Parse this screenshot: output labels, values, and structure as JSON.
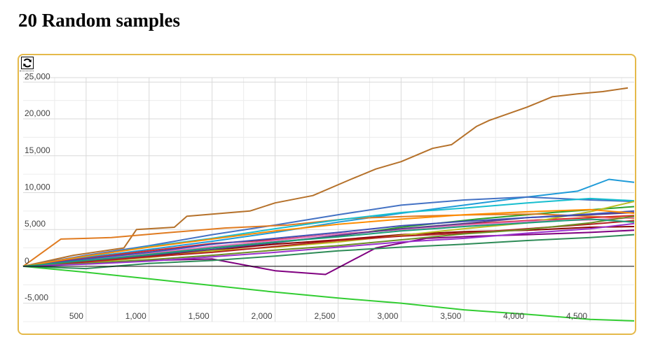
{
  "page": {
    "title": "20 Random samples"
  },
  "toolbar": {
    "refresh_icon": "refresh-icon"
  },
  "colors": {
    "panel_border": "#e5b94a",
    "grid": "#d9d9d9",
    "zero_line": "#000000"
  },
  "chart_data": {
    "type": "line",
    "title": "",
    "xlabel": "",
    "ylabel": "",
    "xlim": [
      0,
      4850
    ],
    "ylim": [
      -7500,
      25600
    ],
    "grid": true,
    "legend": "none",
    "x_ticks": [
      500,
      1000,
      1500,
      2000,
      2500,
      3000,
      3500,
      4000,
      4500
    ],
    "x_tick_labels": [
      "500",
      "1,000",
      "1,500",
      "2,000",
      "2,500",
      "3,000",
      "3,500",
      "4,000",
      "4,500"
    ],
    "y_ticks": [
      -5000,
      0,
      5000,
      10000,
      15000,
      20000,
      25000
    ],
    "y_tick_labels": [
      "-5,000",
      "0",
      "5,000",
      "10,000",
      "15,000",
      "20,000",
      "25,000"
    ],
    "series": [
      {
        "color": "#b5712a",
        "points": [
          [
            0,
            0
          ],
          [
            400,
            1500
          ],
          [
            800,
            2500
          ],
          [
            900,
            5000
          ],
          [
            1200,
            5300
          ],
          [
            1300,
            6800
          ],
          [
            1800,
            7500
          ],
          [
            2000,
            8600
          ],
          [
            2300,
            9600
          ],
          [
            2600,
            11800
          ],
          [
            2800,
            13200
          ],
          [
            3000,
            14200
          ],
          [
            3250,
            16000
          ],
          [
            3400,
            16500
          ],
          [
            3600,
            19000
          ],
          [
            3700,
            19800
          ],
          [
            4000,
            21600
          ],
          [
            4200,
            23000
          ],
          [
            4400,
            23400
          ],
          [
            4600,
            23700
          ],
          [
            4800,
            24200
          ]
        ]
      },
      {
        "color": "#1f9bd8",
        "points": [
          [
            0,
            0
          ],
          [
            500,
            1200
          ],
          [
            1000,
            2300
          ],
          [
            1500,
            3400
          ],
          [
            2000,
            4600
          ],
          [
            2500,
            6000
          ],
          [
            3000,
            7200
          ],
          [
            3500,
            8300
          ],
          [
            4000,
            9400
          ],
          [
            4400,
            10200
          ],
          [
            4650,
            11800
          ],
          [
            4850,
            11400
          ]
        ]
      },
      {
        "color": "#4472c4",
        "points": [
          [
            0,
            0
          ],
          [
            500,
            1500
          ],
          [
            1000,
            2800
          ],
          [
            1500,
            4300
          ],
          [
            2000,
            5600
          ],
          [
            2500,
            7000
          ],
          [
            3000,
            8300
          ],
          [
            3500,
            9000
          ],
          [
            4000,
            9400
          ],
          [
            4500,
            9000
          ],
          [
            4850,
            8800
          ]
        ]
      },
      {
        "color": "#2ca02c",
        "points": [
          [
            0,
            0
          ],
          [
            600,
            900
          ],
          [
            1200,
            2100
          ],
          [
            1800,
            3000
          ],
          [
            2400,
            3900
          ],
          [
            3000,
            5300
          ],
          [
            3600,
            6400
          ],
          [
            4200,
            7300
          ],
          [
            4850,
            8100
          ]
        ]
      },
      {
        "color": "#e07b20",
        "points": [
          [
            0,
            0
          ],
          [
            300,
            3700
          ],
          [
            700,
            3900
          ],
          [
            1100,
            4500
          ],
          [
            1600,
            5200
          ],
          [
            2100,
            5600
          ],
          [
            2600,
            6500
          ],
          [
            3100,
            6800
          ],
          [
            3600,
            7000
          ],
          [
            4100,
            7100
          ],
          [
            4850,
            6500
          ]
        ]
      },
      {
        "color": "#32cd32",
        "points": [
          [
            0,
            0
          ],
          [
            500,
            -800
          ],
          [
            1000,
            -1700
          ],
          [
            1500,
            -2600
          ],
          [
            2000,
            -3500
          ],
          [
            2500,
            -4300
          ],
          [
            3000,
            -5000
          ],
          [
            3500,
            -5900
          ],
          [
            4000,
            -6500
          ],
          [
            4500,
            -7200
          ],
          [
            4850,
            -7400
          ]
        ]
      },
      {
        "color": "#8b0000",
        "points": [
          [
            0,
            0
          ],
          [
            500,
            700
          ],
          [
            1000,
            1400
          ],
          [
            1500,
            2200
          ],
          [
            2000,
            3000
          ],
          [
            2500,
            3600
          ],
          [
            3000,
            4300
          ],
          [
            3500,
            4700
          ],
          [
            4000,
            4900
          ],
          [
            4500,
            5300
          ],
          [
            4850,
            5400
          ]
        ]
      },
      {
        "color": "#800080",
        "points": [
          [
            0,
            0
          ],
          [
            500,
            400
          ],
          [
            1000,
            800
          ],
          [
            1500,
            1000
          ],
          [
            2000,
            -600
          ],
          [
            2400,
            -1100
          ],
          [
            2800,
            2500
          ],
          [
            3200,
            3800
          ],
          [
            3600,
            4100
          ],
          [
            4000,
            4300
          ],
          [
            4500,
            4600
          ],
          [
            4850,
            4900
          ]
        ]
      },
      {
        "color": "#17becf",
        "points": [
          [
            0,
            0
          ],
          [
            500,
            1300
          ],
          [
            1000,
            2700
          ],
          [
            1500,
            3800
          ],
          [
            2000,
            5100
          ],
          [
            2500,
            6300
          ],
          [
            3000,
            7300
          ],
          [
            3500,
            7900
          ],
          [
            4000,
            8600
          ],
          [
            4500,
            9200
          ],
          [
            4850,
            8900
          ]
        ]
      },
      {
        "color": "#d62728",
        "points": [
          [
            0,
            0
          ],
          [
            500,
            1100
          ],
          [
            1000,
            2100
          ],
          [
            1500,
            3100
          ],
          [
            2000,
            3600
          ],
          [
            2500,
            4400
          ],
          [
            3000,
            5000
          ],
          [
            3500,
            5700
          ],
          [
            4000,
            6200
          ],
          [
            4500,
            6600
          ],
          [
            4850,
            6900
          ]
        ]
      },
      {
        "color": "#bcbd22",
        "points": [
          [
            0,
            0
          ],
          [
            500,
            500
          ],
          [
            1000,
            1200
          ],
          [
            1500,
            2100
          ],
          [
            2000,
            2600
          ],
          [
            2500,
            3300
          ],
          [
            3000,
            4200
          ],
          [
            3500,
            5100
          ],
          [
            4000,
            5900
          ],
          [
            4500,
            7400
          ],
          [
            4850,
            8800
          ]
        ]
      },
      {
        "color": "#e377c2",
        "points": [
          [
            0,
            0
          ],
          [
            500,
            900
          ],
          [
            1000,
            1800
          ],
          [
            1500,
            2700
          ],
          [
            2000,
            3500
          ],
          [
            2500,
            4400
          ],
          [
            3000,
            5000
          ],
          [
            3500,
            5600
          ],
          [
            4000,
            6100
          ],
          [
            4500,
            6300
          ],
          [
            4850,
            6600
          ]
        ]
      },
      {
        "color": "#5a3d8a",
        "points": [
          [
            0,
            0
          ],
          [
            500,
            700
          ],
          [
            1000,
            1500
          ],
          [
            1500,
            2300
          ],
          [
            2000,
            3200
          ],
          [
            2500,
            4200
          ],
          [
            3000,
            5100
          ],
          [
            3500,
            5800
          ],
          [
            4000,
            6600
          ],
          [
            4500,
            7000
          ],
          [
            4850,
            7300
          ]
        ]
      },
      {
        "color": "#2e8b57",
        "points": [
          [
            0,
            0
          ],
          [
            500,
            -300
          ],
          [
            1000,
            400
          ],
          [
            1500,
            800
          ],
          [
            2000,
            1400
          ],
          [
            2500,
            2100
          ],
          [
            3000,
            2600
          ],
          [
            3500,
            3000
          ],
          [
            4000,
            3500
          ],
          [
            4500,
            3900
          ],
          [
            4850,
            4300
          ]
        ]
      },
      {
        "color": "#b22222",
        "points": [
          [
            0,
            0
          ],
          [
            500,
            600
          ],
          [
            1000,
            1300
          ],
          [
            1500,
            1900
          ],
          [
            2000,
            2700
          ],
          [
            2500,
            3500
          ],
          [
            3000,
            4100
          ],
          [
            3500,
            4500
          ],
          [
            4000,
            5100
          ],
          [
            4500,
            5700
          ],
          [
            4850,
            6200
          ]
        ]
      },
      {
        "color": "#6b8e23",
        "points": [
          [
            0,
            0
          ],
          [
            500,
            400
          ],
          [
            1000,
            900
          ],
          [
            1500,
            1500
          ],
          [
            2000,
            2200
          ],
          [
            2500,
            2800
          ],
          [
            3000,
            3600
          ],
          [
            3500,
            4400
          ],
          [
            4000,
            5000
          ],
          [
            4500,
            5900
          ],
          [
            4850,
            6800
          ]
        ]
      },
      {
        "color": "#3f51b5",
        "points": [
          [
            0,
            0
          ],
          [
            500,
            1000
          ],
          [
            1000,
            1900
          ],
          [
            1500,
            3000
          ],
          [
            2000,
            3800
          ],
          [
            2500,
            4600
          ],
          [
            3000,
            5500
          ],
          [
            3500,
            6100
          ],
          [
            4000,
            6600
          ],
          [
            4500,
            7100
          ],
          [
            4850,
            7500
          ]
        ]
      },
      {
        "color": "#9932cc",
        "points": [
          [
            0,
            0
          ],
          [
            500,
            300
          ],
          [
            1000,
            700
          ],
          [
            1500,
            1300
          ],
          [
            2000,
            1900
          ],
          [
            2500,
            2600
          ],
          [
            3000,
            3300
          ],
          [
            3500,
            3800
          ],
          [
            4000,
            4500
          ],
          [
            4500,
            5100
          ],
          [
            4850,
            5800
          ]
        ]
      },
      {
        "color": "#ff8c00",
        "points": [
          [
            0,
            0
          ],
          [
            500,
            1400
          ],
          [
            1000,
            2600
          ],
          [
            1500,
            3700
          ],
          [
            2000,
            4800
          ],
          [
            2500,
            5700
          ],
          [
            3000,
            6400
          ],
          [
            3500,
            7000
          ],
          [
            4000,
            7400
          ],
          [
            4500,
            7700
          ],
          [
            4850,
            7200
          ]
        ]
      },
      {
        "color": "#1b9e77",
        "points": [
          [
            0,
            0
          ],
          [
            500,
            800
          ],
          [
            1000,
            1600
          ],
          [
            1500,
            2500
          ],
          [
            2000,
            3300
          ],
          [
            2500,
            4000
          ],
          [
            3000,
            4800
          ],
          [
            3500,
            5400
          ],
          [
            4000,
            5900
          ],
          [
            4500,
            6400
          ],
          [
            4850,
            6000
          ]
        ]
      }
    ]
  }
}
